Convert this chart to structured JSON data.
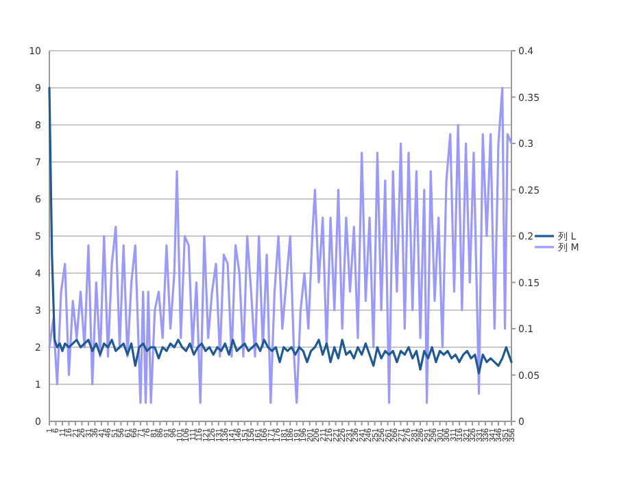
{
  "chart_data": {
    "type": "line",
    "grid": "y",
    "legend": "right",
    "xlim": [
      1,
      356
    ],
    "xticks": [
      1,
      6,
      11,
      16,
      21,
      26,
      31,
      36,
      41,
      46,
      51,
      56,
      61,
      66,
      71,
      76,
      81,
      86,
      91,
      96,
      101,
      106,
      111,
      116,
      121,
      126,
      131,
      136,
      141,
      146,
      151,
      156,
      161,
      166,
      171,
      176,
      181,
      186,
      191,
      196,
      201,
      206,
      211,
      216,
      221,
      226,
      231,
      236,
      241,
      246,
      251,
      256,
      261,
      266,
      271,
      276,
      281,
      286,
      291,
      296,
      301,
      306,
      311,
      316,
      321,
      326,
      331,
      336,
      341,
      346,
      351,
      356
    ],
    "ylim": [
      0,
      10
    ],
    "yticks": [
      0,
      1,
      2,
      3,
      4,
      5,
      6,
      7,
      8,
      9,
      10
    ],
    "y2lim": [
      0,
      0.4
    ],
    "y2ticks": [
      0,
      0.05,
      0.1,
      0.15,
      0.2,
      0.25,
      0.3,
      0.35,
      0.4
    ],
    "series": [
      {
        "name": "列 L",
        "color": "#1f5a96",
        "x": [
          1,
          3,
          5,
          7,
          9,
          11,
          13,
          16,
          19,
          22,
          25,
          28,
          31,
          34,
          37,
          40,
          43,
          46,
          49,
          52,
          55,
          58,
          61,
          64,
          67,
          70,
          73,
          76,
          79,
          82,
          85,
          88,
          91,
          94,
          97,
          100,
          103,
          106,
          109,
          112,
          115,
          118,
          121,
          124,
          127,
          130,
          133,
          136,
          139,
          142,
          145,
          148,
          151,
          154,
          157,
          160,
          163,
          166,
          169,
          172,
          175,
          178,
          181,
          184,
          187,
          190,
          193,
          196,
          199,
          202,
          205,
          208,
          211,
          214,
          217,
          220,
          223,
          226,
          229,
          232,
          235,
          238,
          241,
          244,
          247,
          250,
          253,
          256,
          259,
          262,
          265,
          268,
          271,
          274,
          277,
          280,
          283,
          286,
          289,
          292,
          295,
          298,
          301,
          304,
          307,
          310,
          313,
          316,
          319,
          322,
          325,
          328,
          331,
          334,
          337,
          340,
          343,
          346,
          349,
          352,
          356
        ],
        "values": [
          9,
          4.5,
          2.2,
          2.0,
          2.1,
          1.9,
          2.1,
          2.0,
          2.1,
          2.2,
          2.0,
          2.1,
          2.2,
          1.9,
          2.1,
          1.8,
          2.1,
          2.0,
          2.2,
          1.9,
          2.0,
          2.1,
          1.8,
          2.1,
          1.5,
          2.0,
          2.1,
          1.9,
          2.0,
          2.0,
          1.7,
          2.0,
          1.9,
          2.1,
          2.0,
          2.2,
          2.0,
          1.9,
          2.1,
          1.8,
          2.0,
          2.1,
          1.9,
          2.0,
          1.8,
          2.0,
          1.9,
          2.1,
          1.8,
          2.2,
          1.9,
          2.0,
          2.1,
          1.9,
          2.0,
          2.1,
          1.9,
          2.2,
          2.0,
          1.9,
          2.0,
          1.6,
          2.0,
          1.9,
          2.0,
          1.8,
          2.0,
          1.9,
          1.6,
          1.9,
          2.0,
          2.2,
          1.8,
          2.1,
          1.6,
          2.0,
          1.7,
          2.2,
          1.8,
          1.9,
          1.7,
          2.0,
          1.8,
          2.1,
          1.8,
          1.5,
          2.0,
          1.7,
          1.9,
          1.8,
          1.9,
          1.6,
          1.9,
          1.8,
          2.0,
          1.7,
          1.9,
          1.4,
          1.9,
          1.7,
          2.0,
          1.6,
          1.9,
          1.8,
          1.9,
          1.7,
          1.8,
          1.6,
          1.8,
          1.9,
          1.7,
          1.8,
          1.3,
          1.8,
          1.6,
          1.7,
          1.6,
          1.5,
          1.7,
          2.0,
          1.6
        ]
      },
      {
        "name": "列 M",
        "color": "#9999ff",
        "axis": "y2",
        "x": [
          1,
          4,
          7,
          10,
          13,
          16,
          19,
          22,
          25,
          28,
          31,
          34,
          37,
          40,
          43,
          46,
          49,
          52,
          55,
          58,
          61,
          64,
          67,
          71,
          73,
          75,
          77,
          79,
          82,
          85,
          88,
          91,
          94,
          97,
          99,
          102,
          105,
          108,
          111,
          114,
          117,
          120,
          123,
          126,
          129,
          132,
          135,
          138,
          141,
          144,
          147,
          150,
          153,
          156,
          159,
          162,
          165,
          168,
          171,
          174,
          177,
          180,
          183,
          186,
          189,
          191,
          194,
          197,
          200,
          203,
          205,
          208,
          211,
          214,
          217,
          220,
          223,
          226,
          229,
          232,
          235,
          238,
          241,
          244,
          247,
          250,
          253,
          256,
          259,
          262,
          265,
          268,
          271,
          274,
          277,
          280,
          283,
          286,
          289,
          291,
          294,
          297,
          300,
          303,
          306,
          309,
          312,
          315,
          318,
          321,
          324,
          327,
          330,
          331,
          334,
          337,
          340,
          343,
          346,
          349,
          351,
          353,
          356
        ],
        "values": [
          0.08,
          0.11,
          0.04,
          0.14,
          0.17,
          0.05,
          0.13,
          0.09,
          0.14,
          0.08,
          0.19,
          0.04,
          0.15,
          0.07,
          0.2,
          0.07,
          0.17,
          0.21,
          0.08,
          0.19,
          0.07,
          0.15,
          0.19,
          0.02,
          0.14,
          0.02,
          0.14,
          0.02,
          0.12,
          0.14,
          0.09,
          0.19,
          0.1,
          0.16,
          0.27,
          0.09,
          0.2,
          0.19,
          0.08,
          0.15,
          0.02,
          0.2,
          0.09,
          0.14,
          0.17,
          0.07,
          0.18,
          0.17,
          0.07,
          0.19,
          0.16,
          0.07,
          0.2,
          0.14,
          0.07,
          0.2,
          0.08,
          0.18,
          0.02,
          0.14,
          0.2,
          0.1,
          0.15,
          0.2,
          0.07,
          0.02,
          0.12,
          0.16,
          0.1,
          0.2,
          0.25,
          0.15,
          0.22,
          0.08,
          0.22,
          0.12,
          0.25,
          0.1,
          0.22,
          0.14,
          0.21,
          0.09,
          0.29,
          0.13,
          0.22,
          0.08,
          0.29,
          0.12,
          0.26,
          0.02,
          0.27,
          0.14,
          0.3,
          0.1,
          0.29,
          0.12,
          0.27,
          0.09,
          0.25,
          0.02,
          0.27,
          0.13,
          0.22,
          0.08,
          0.26,
          0.31,
          0.14,
          0.32,
          0.12,
          0.3,
          0.15,
          0.29,
          0.1,
          0.03,
          0.31,
          0.2,
          0.31,
          0.1,
          0.3,
          0.36,
          0.1,
          0.31,
          0.3
        ]
      }
    ]
  }
}
